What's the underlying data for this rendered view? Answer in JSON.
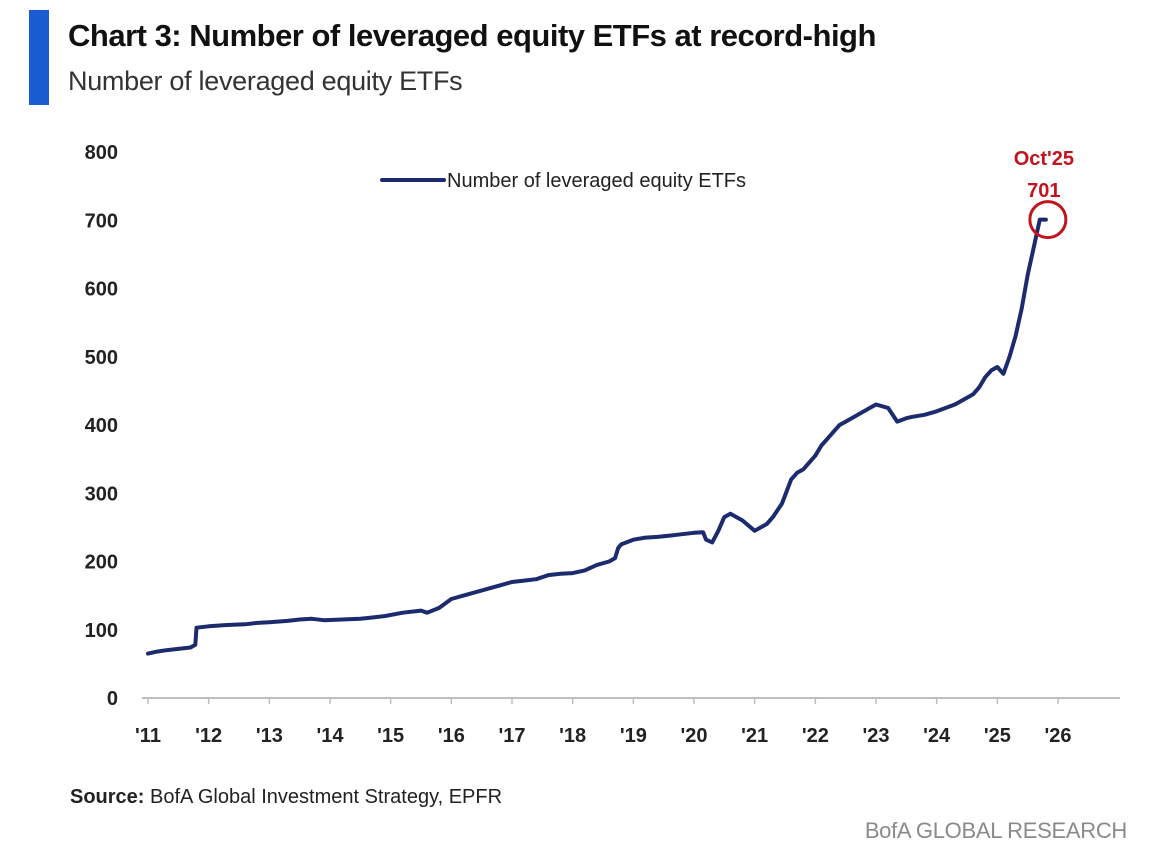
{
  "header": {
    "title": "Chart 3: Number of leveraged equity ETFs at record-high",
    "subtitle": "Number of leveraged equity ETFs"
  },
  "footer": {
    "source_label": "Source:",
    "source_text": " BofA Global Investment Strategy, EPFR",
    "branding": "BofA GLOBAL RESEARCH"
  },
  "colors": {
    "accent": "#1a5bd1",
    "series": "#1c2a6e",
    "annotation": "#c0141f",
    "axis_text": "#222222",
    "axis_line": "#bfbfbf"
  },
  "chart_data": {
    "type": "line",
    "title": "Chart 3: Number of leveraged equity ETFs at record-high",
    "subtitle": "Number of leveraged equity ETFs",
    "xlabel": "",
    "ylabel": "",
    "xlim": [
      2011,
      2026
    ],
    "ylim": [
      0,
      800
    ],
    "y_ticks": [
      0,
      100,
      200,
      300,
      400,
      500,
      600,
      700,
      800
    ],
    "x_ticks": [
      2011,
      2012,
      2013,
      2014,
      2015,
      2016,
      2017,
      2018,
      2019,
      2020,
      2021,
      2022,
      2023,
      2024,
      2025,
      2026
    ],
    "x_tick_labels": [
      "'11",
      "'12",
      "'13",
      "'14",
      "'15",
      "'16",
      "'17",
      "'18",
      "'19",
      "'20",
      "'21",
      "'22",
      "'23",
      "'24",
      "'25",
      "'26"
    ],
    "grid": false,
    "legend": {
      "position": "top-center",
      "entries": [
        "Number of leveraged equity ETFs"
      ]
    },
    "series": [
      {
        "name": "Number of leveraged equity ETFs",
        "x": [
          2011.0,
          2011.15,
          2011.3,
          2011.5,
          2011.7,
          2011.78,
          2011.8,
          2012.0,
          2012.3,
          2012.6,
          2012.8,
          2013.0,
          2013.3,
          2013.5,
          2013.7,
          2013.9,
          2014.2,
          2014.5,
          2014.7,
          2014.9,
          2015.2,
          2015.5,
          2015.6,
          2015.8,
          2016.0,
          2016.2,
          2016.4,
          2016.6,
          2016.8,
          2017.0,
          2017.2,
          2017.4,
          2017.6,
          2017.8,
          2018.0,
          2018.2,
          2018.4,
          2018.6,
          2018.7,
          2018.75,
          2018.8,
          2019.0,
          2019.2,
          2019.4,
          2019.6,
          2019.8,
          2020.0,
          2020.15,
          2020.2,
          2020.3,
          2020.4,
          2020.5,
          2020.6,
          2020.8,
          2021.0,
          2021.2,
          2021.3,
          2021.45,
          2021.6,
          2021.7,
          2021.8,
          2021.9,
          2022.0,
          2022.1,
          2022.2,
          2022.3,
          2022.4,
          2022.5,
          2022.6,
          2022.7,
          2022.8,
          2022.9,
          2023.0,
          2023.2,
          2023.35,
          2023.5,
          2023.6,
          2023.8,
          2024.0,
          2024.15,
          2024.3,
          2024.5,
          2024.6,
          2024.7,
          2024.8,
          2024.9,
          2025.0,
          2025.1,
          2025.2,
          2025.3,
          2025.4,
          2025.5,
          2025.6,
          2025.7,
          2025.8
        ],
        "values": [
          65,
          68,
          70,
          72,
          74,
          78,
          103,
          105,
          107,
          108,
          110,
          111,
          113,
          115,
          116,
          114,
          115,
          116,
          118,
          120,
          125,
          128,
          125,
          132,
          145,
          150,
          155,
          160,
          165,
          170,
          172,
          174,
          180,
          182,
          183,
          187,
          195,
          200,
          205,
          220,
          225,
          232,
          235,
          236,
          238,
          240,
          242,
          243,
          232,
          228,
          245,
          265,
          270,
          260,
          245,
          255,
          265,
          285,
          320,
          330,
          335,
          345,
          355,
          370,
          380,
          390,
          400,
          405,
          410,
          415,
          420,
          425,
          430,
          425,
          405,
          410,
          412,
          415,
          420,
          425,
          430,
          440,
          445,
          455,
          470,
          480,
          485,
          475,
          500,
          530,
          570,
          620,
          660,
          701,
          701
        ]
      }
    ],
    "annotations": [
      {
        "label": "Oct'25",
        "value_label": "701",
        "x": 2025.8,
        "y": 701
      }
    ]
  }
}
